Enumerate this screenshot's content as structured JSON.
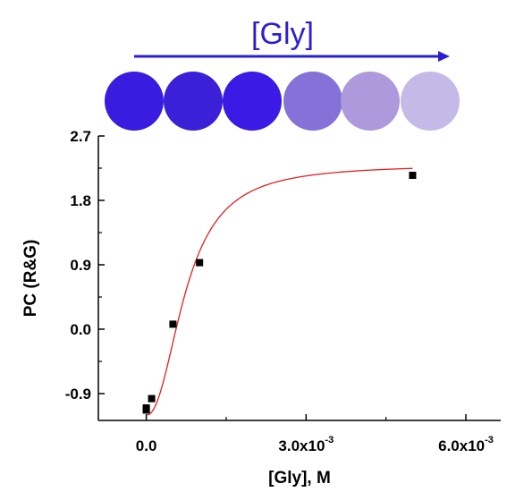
{
  "header": {
    "label": "[Gly]",
    "color": "#2d1fd0",
    "arrow_color": "#2d1fd0"
  },
  "well_colors": [
    "#3a1ce0",
    "#3b20d8",
    "#3a1ae4",
    "#8472d8",
    "#ad99dc",
    "#c5b9e8"
  ],
  "chart_data": {
    "type": "scatter",
    "title": "",
    "xlabel": "[Gly], M",
    "ylabel": "PC (R&G)",
    "xlim": [
      -0.0009,
      0.0066
    ],
    "ylim": [
      -1.05,
      2.7
    ],
    "xticks": [
      {
        "value": 0.0,
        "label": "0.0",
        "sup": ""
      },
      {
        "value": 0.003,
        "label": "3.0x10",
        "sup": "-3"
      },
      {
        "value": 0.006,
        "label": "6.0x10",
        "sup": "-3"
      }
    ],
    "yticks": [
      {
        "value": -0.9,
        "label": "-0.9"
      },
      {
        "value": 0.0,
        "label": "0.0"
      },
      {
        "value": 0.9,
        "label": "0.9"
      },
      {
        "value": 1.8,
        "label": "1.8"
      },
      {
        "value": 2.7,
        "label": "2.7"
      }
    ],
    "series": [
      {
        "x": [
          0.0,
          0.0,
          0.0001,
          0.0005,
          0.001,
          0.005
        ],
        "y": [
          -1.13,
          -1.1,
          -0.97,
          0.07,
          0.93,
          2.15
        ],
        "color": "#000000"
      }
    ],
    "fit_color": "#e02020",
    "grid": false
  }
}
